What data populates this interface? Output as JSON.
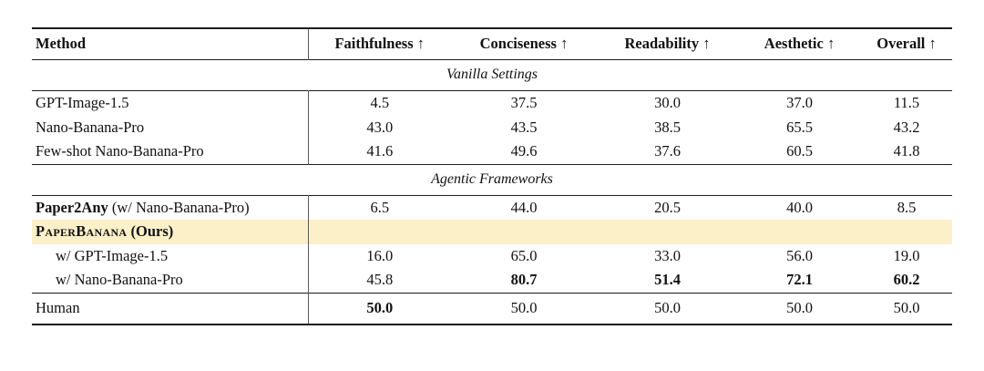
{
  "table": {
    "columns": [
      "Method",
      "Faithfulness ↑",
      "Conciseness ↑",
      "Readability ↑",
      "Aesthetic ↑",
      "Overall ↑"
    ],
    "sections": [
      {
        "label": "Vanilla Settings",
        "rows": [
          {
            "method": "GPT-Image-1.5",
            "values": [
              "4.5",
              "37.5",
              "30.0",
              "37.0",
              "11.5"
            ]
          },
          {
            "method": "Nano-Banana-Pro",
            "values": [
              "43.0",
              "43.5",
              "38.5",
              "65.5",
              "43.2"
            ]
          },
          {
            "method": "Few-shot Nano-Banana-Pro",
            "values": [
              "41.6",
              "49.6",
              "37.6",
              "60.5",
              "41.8"
            ]
          }
        ]
      },
      {
        "label": "Agentic Frameworks",
        "rows": [
          {
            "method_bold": "Paper2Any",
            "method_rest": " (w/ Nano-Banana-Pro)",
            "values": [
              "6.5",
              "44.0",
              "20.5",
              "40.0",
              "8.5"
            ]
          },
          {
            "method_smallcaps": "PaperBanana",
            "method_suffix": " (Ours)",
            "values": []
          },
          {
            "method": "w/ GPT-Image-1.5",
            "values": [
              "16.0",
              "65.0",
              "33.0",
              "56.0",
              "19.0"
            ]
          },
          {
            "method": "w/ Nano-Banana-Pro",
            "values": [
              "45.8",
              "80.7",
              "51.4",
              "72.1",
              "60.2"
            ]
          }
        ]
      }
    ],
    "footer": {
      "method": "Human",
      "values": [
        "50.0",
        "50.0",
        "50.0",
        "50.0",
        "50.0"
      ]
    }
  },
  "colors": {
    "highlight": "#FCF0C8",
    "rule": "#1c1c1c",
    "divider": "#5a5a5a"
  }
}
